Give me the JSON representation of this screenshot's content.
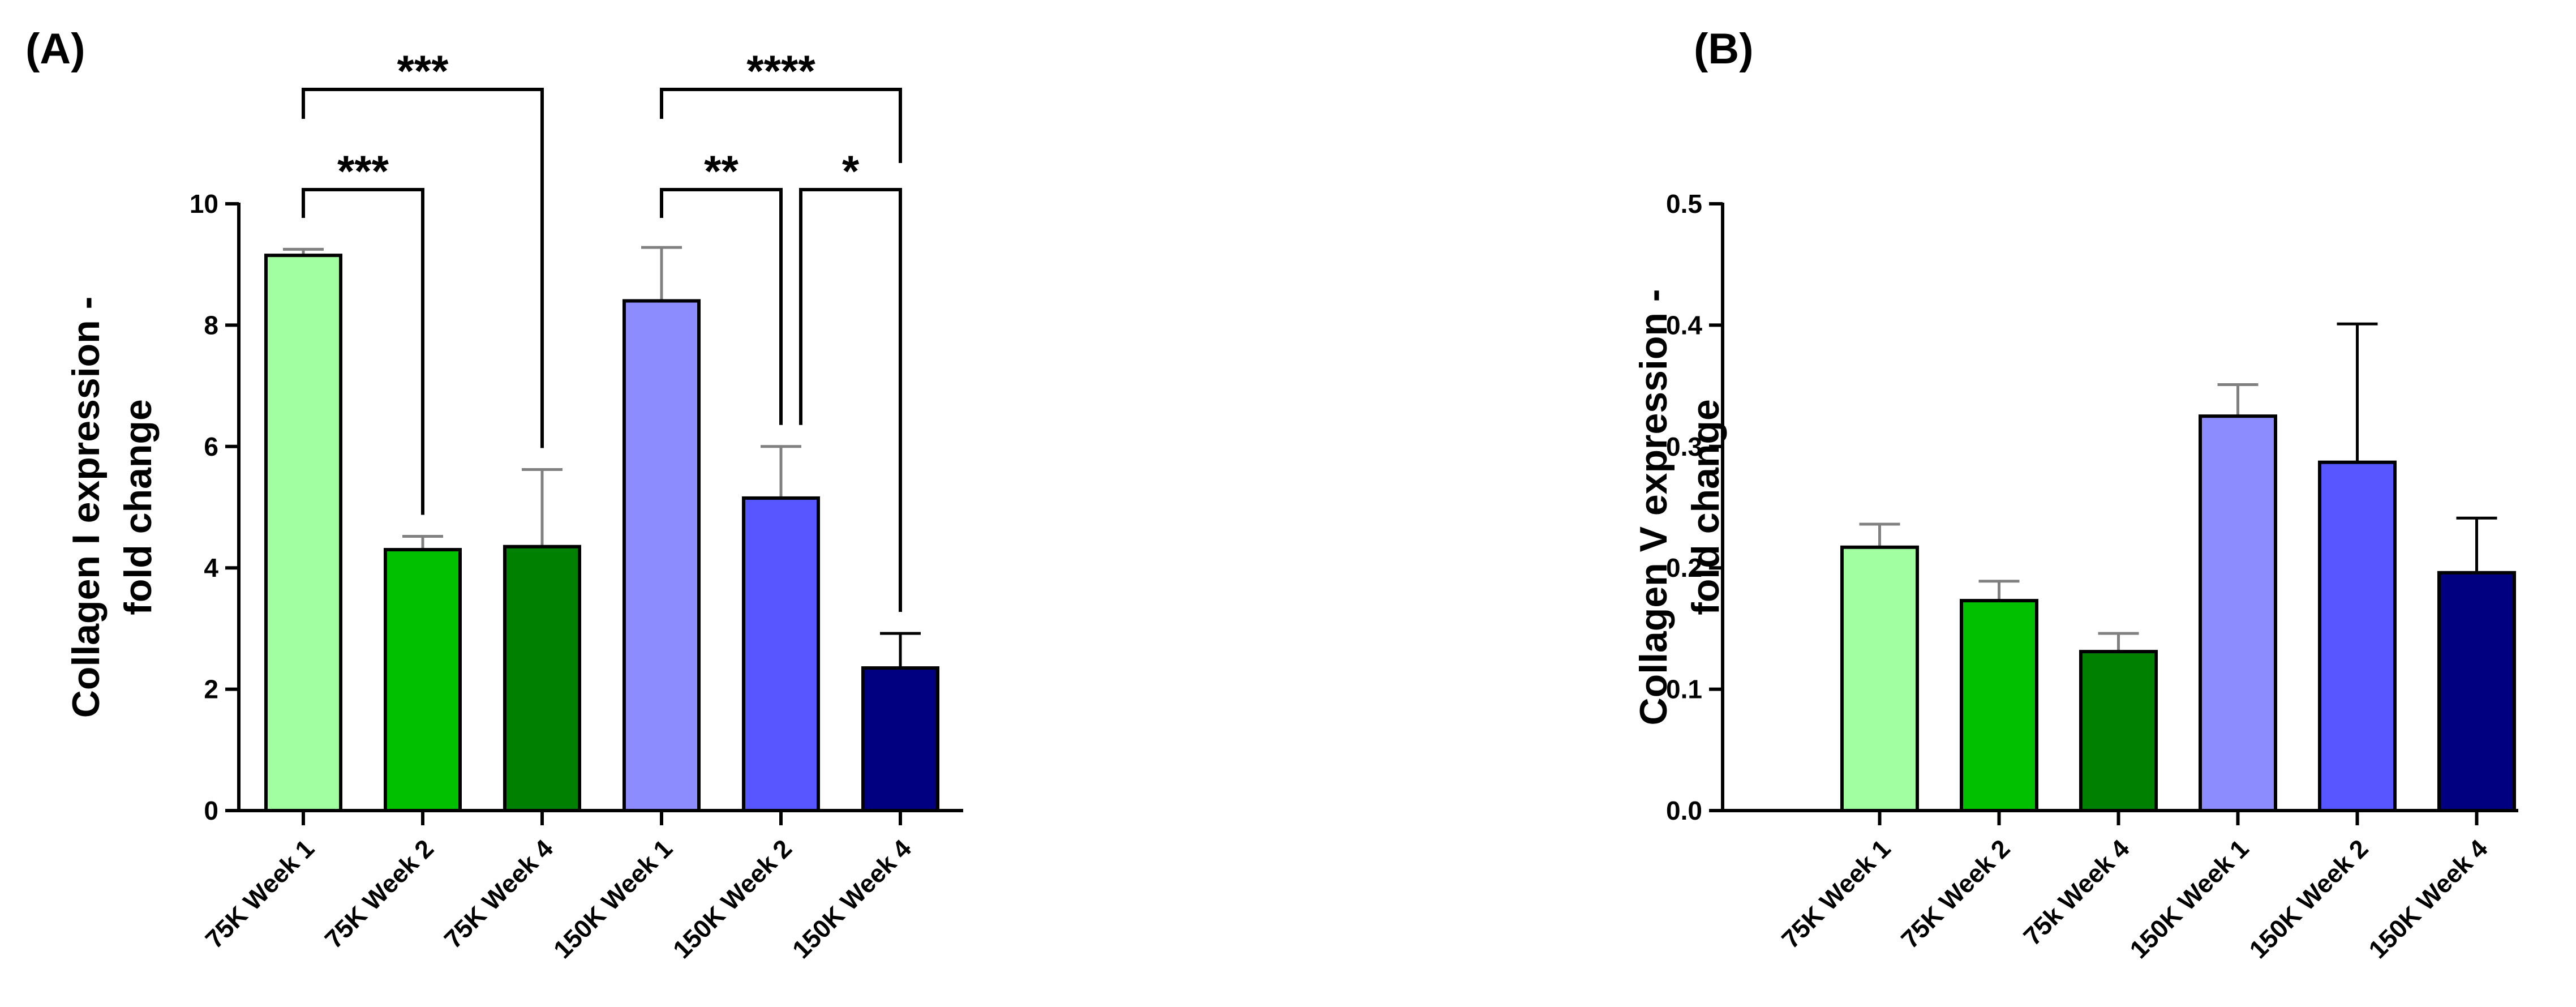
{
  "chart_data": [
    {
      "type": "bar",
      "panel_label": "(A)",
      "title": "",
      "ylabel_line1": "Collagen I expression -",
      "ylabel_line2": "fold change",
      "xlabel": "",
      "ylim": [
        0,
        10
      ],
      "yticks": [
        0,
        2,
        4,
        6,
        8,
        10
      ],
      "ytick_labels": [
        "0",
        "2",
        "4",
        "6",
        "8",
        "10"
      ],
      "categories": [
        "75K Week 1",
        "75K Week 2",
        "75K Week 4",
        "150K Week 1",
        "150K Week 2",
        "150K Week 4"
      ],
      "values": [
        9.15,
        4.3,
        4.35,
        8.4,
        5.15,
        2.35
      ],
      "errors": [
        0.1,
        0.22,
        1.27,
        0.88,
        0.85,
        0.57
      ],
      "colors": [
        "#a2ffa0",
        "#00c000",
        "#008000",
        "#8c8cff",
        "#5757ff",
        "#000080"
      ],
      "error_colors": [
        "#808080",
        "#808080",
        "#808080",
        "#808080",
        "#808080",
        "#000000"
      ],
      "significance": [
        {
          "from": 0,
          "to": 1,
          "label": "***",
          "level": "lower"
        },
        {
          "from": 0,
          "to": 2,
          "label": "***",
          "level": "upper"
        },
        {
          "from": 3,
          "to": 4,
          "label": "**",
          "level": "lower"
        },
        {
          "from": 4,
          "to": 5,
          "label": "*",
          "level": "lower"
        },
        {
          "from": 3,
          "to": 5,
          "label": "****",
          "level": "upper"
        }
      ]
    },
    {
      "type": "bar",
      "panel_label": "(B)",
      "title": "",
      "ylabel_line1": "Collagen V expression -",
      "ylabel_line2": "fold change",
      "xlabel": "",
      "ylim": [
        0,
        0.5
      ],
      "yticks": [
        0,
        0.1,
        0.2,
        0.3,
        0.4,
        0.5
      ],
      "ytick_labels": [
        "0.0",
        "0.1",
        "0.2",
        "0.3",
        "0.4",
        "0.5"
      ],
      "categories": [
        "75K Week 1",
        "75K Week 2",
        "75k Week 4",
        "150K Week 1",
        "150K Week 2",
        "150K Week 4"
      ],
      "values": [
        0.217,
        0.173,
        0.131,
        0.325,
        0.287,
        0.196
      ],
      "errors": [
        0.019,
        0.016,
        0.015,
        0.026,
        0.114,
        0.045
      ],
      "colors": [
        "#a2ffa0",
        "#00c000",
        "#008000",
        "#8c8cff",
        "#5757ff",
        "#000080"
      ],
      "error_colors": [
        "#808080",
        "#808080",
        "#808080",
        "#808080",
        "#000000",
        "#000000"
      ],
      "significance": []
    }
  ]
}
